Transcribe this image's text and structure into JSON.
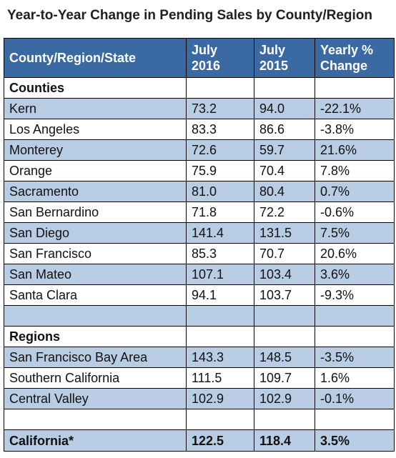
{
  "title": "Year-to-Year Change in Pending Sales by County/Region",
  "chart_data": {
    "type": "table",
    "title": "Year-to-Year Change in Pending Sales by County/Region",
    "columns": [
      {
        "line1": "County/Region/State",
        "line2": ""
      },
      {
        "line1": "July",
        "line2": "2016"
      },
      {
        "line1": "July",
        "line2": "2015"
      },
      {
        "line1": "Yearly %",
        "line2": "Change"
      }
    ],
    "sections": [
      {
        "label": "Counties",
        "rows": [
          [
            "Kern",
            "73.2",
            "94.0",
            "-22.1%"
          ],
          [
            "Los Angeles",
            "83.3",
            "86.6",
            "-3.8%"
          ],
          [
            "Monterey",
            "72.6",
            "59.7",
            "21.6%"
          ],
          [
            "Orange",
            "75.9",
            "70.4",
            "7.8%"
          ],
          [
            "Sacramento",
            "81.0",
            "80.4",
            "0.7%"
          ],
          [
            "San Bernardino",
            "71.8",
            "72.2",
            "-0.6%"
          ],
          [
            "San Diego",
            "141.4",
            "131.5",
            "7.5%"
          ],
          [
            "San Francisco",
            "85.3",
            "70.7",
            "20.6%"
          ],
          [
            "San Mateo",
            "107.1",
            "103.4",
            "3.6%"
          ],
          [
            "Santa Clara",
            "94.1",
            "103.7",
            "-9.3%"
          ]
        ]
      },
      {
        "label": "Regions",
        "rows": [
          [
            "San Francisco Bay Area",
            "143.3",
            "148.5",
            "-3.5%"
          ],
          [
            "Southern California",
            "111.5",
            "109.7",
            "1.6%"
          ],
          [
            "Central Valley",
            "102.9",
            "102.9",
            "-0.1%"
          ]
        ]
      }
    ],
    "total": [
      "California*",
      "122.5",
      "118.4",
      "3.5%"
    ]
  }
}
